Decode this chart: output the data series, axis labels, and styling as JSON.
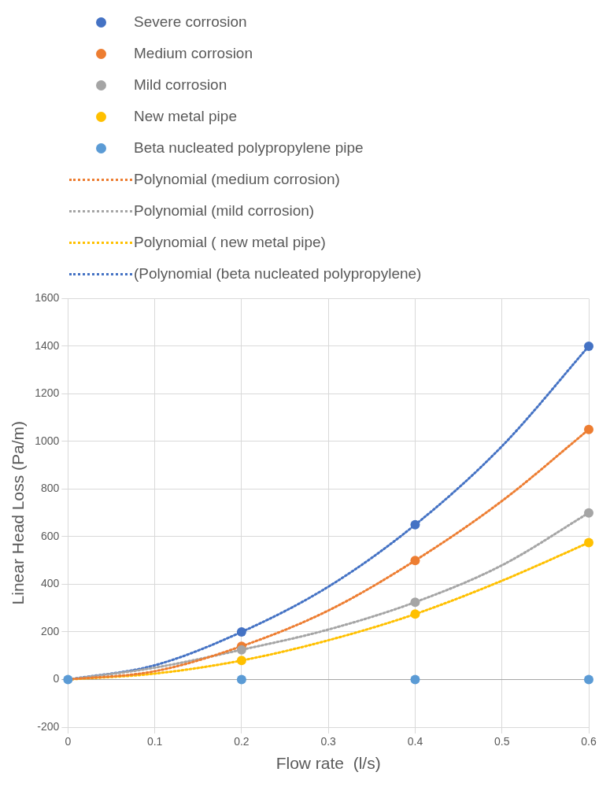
{
  "chart_data": {
    "type": "scatter",
    "xlabel": "Flow rate  (l/s)",
    "ylabel": "Linear Head Loss (Pa/m)",
    "x": [
      0,
      0.2,
      0.4,
      0.6
    ],
    "series": [
      {
        "name": "Severe corrosion",
        "color": "#4472c4",
        "values": [
          null,
          200,
          650,
          1400
        ],
        "marker": "circle"
      },
      {
        "name": "Medium corrosion",
        "color": "#ed7d31",
        "values": [
          null,
          140,
          500,
          1050
        ],
        "marker": "circle"
      },
      {
        "name": "Mild corrosion",
        "color": "#a5a5a5",
        "values": [
          null,
          125,
          325,
          700
        ],
        "marker": "circle"
      },
      {
        "name": "New metal pipe",
        "color": "#ffc000",
        "values": [
          null,
          80,
          275,
          575
        ],
        "marker": "circle"
      },
      {
        "name": "Beta nucleated polypropylene pipe",
        "color": "#5b9bd5",
        "values": [
          0,
          0,
          0,
          0
        ],
        "marker": "circle"
      },
      {
        "name": "Polynomial (medium corrosion)",
        "type": "line",
        "line_style": "dotted",
        "marker": "none",
        "color": "#ed7d31",
        "x": [
          0,
          0.1,
          0.2,
          0.3,
          0.4,
          0.5,
          0.6
        ],
        "values": [
          0,
          35,
          140,
          290,
          500,
          750,
          1050
        ]
      },
      {
        "name": "Polynomial (mild corrosion)",
        "type": "line",
        "line_style": "dotted",
        "marker": "none",
        "color": "#a5a5a5",
        "x": [
          0,
          0.1,
          0.2,
          0.3,
          0.4,
          0.5,
          0.6
        ],
        "values": [
          0,
          50,
          125,
          210,
          325,
          480,
          700
        ]
      },
      {
        "name": "Polynomial ( new metal pipe)",
        "type": "line",
        "line_style": "dotted",
        "marker": "none",
        "color": "#ffc000",
        "x": [
          0,
          0.1,
          0.2,
          0.3,
          0.4,
          0.5,
          0.6
        ],
        "values": [
          0,
          25,
          80,
          165,
          275,
          415,
          575
        ]
      },
      {
        "name": "(Polynomial (beta nucleated polypropylene)",
        "type": "line",
        "line_style": "dotted",
        "marker": "none",
        "color": "#4472c4",
        "x": [
          0,
          0.1,
          0.2,
          0.3,
          0.4,
          0.5,
          0.6
        ],
        "values": [
          0,
          60,
          200,
          390,
          650,
          980,
          1400
        ]
      }
    ],
    "xlim": [
      0,
      0.6
    ],
    "xticks": [
      0,
      0.1,
      0.2,
      0.3,
      0.4,
      0.5,
      0.6
    ],
    "ylim": [
      -200,
      1600
    ],
    "yticks": [
      -200,
      0,
      200,
      400,
      600,
      800,
      1000,
      1200,
      1400,
      1600
    ],
    "grid": true,
    "legend": "top"
  }
}
